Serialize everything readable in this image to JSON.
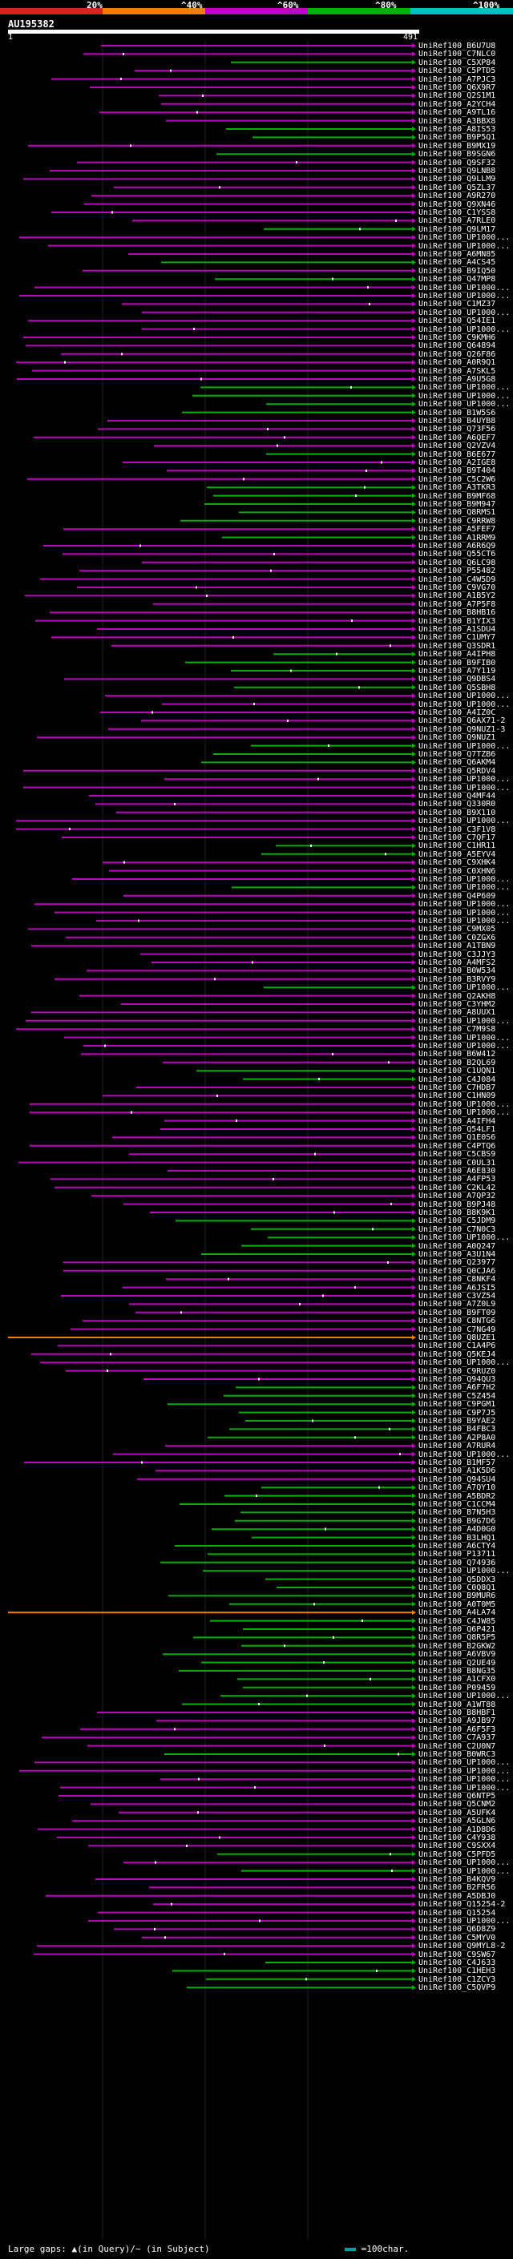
{
  "legend": {
    "labels": [
      "20%",
      "^40%",
      "^60%",
      "^80%",
      "^100%"
    ],
    "colors": [
      "#e02020",
      "#f08000",
      "#c000c0",
      "#00b000",
      "#00c0c0"
    ]
  },
  "query": {
    "name": "AU195382",
    "start": "1",
    "end": "491"
  },
  "footer": {
    "text": "Large gaps: ▲(in Query)/~ (in Subject)",
    "scale": "=100char."
  },
  "hits": [
    "UniRef100_B6U7U8",
    "UniRef100_C7NLC0",
    "UniRef100_C5XP84",
    "UniRef100_C5PTD5",
    "UniRef100_A7PJC3",
    "UniRef100_Q6X9R7",
    "UniRef100_Q2S1M1",
    "UniRef100_A2YCH4",
    "UniRef100_A9TL16",
    "UniRef100_A3BBX8",
    "UniRef100_A8IS53",
    "UniRef100_B9P5Q1",
    "UniRef100_B9MX19",
    "UniRef100_B9SGN6",
    "UniRef100_Q9SF32",
    "UniRef100_Q9LNB8",
    "UniRef100_Q9LLM9",
    "UniRef100_Q5ZL37",
    "UniRef100_A9R270",
    "UniRef100_Q9XN46",
    "UniRef100_C1YSS8",
    "UniRef100_A7RLE0",
    "UniRef100_Q9LM17",
    "UniRef100_UP1000...",
    "UniRef100_UP1000...",
    "UniRef100_A6MN85",
    "UniRef100_A4CS45",
    "UniRef100_B9IQ50",
    "UniRef100_Q47MP8",
    "UniRef100_UP1000...",
    "UniRef100_UP1000...",
    "UniRef100_C1MZ37",
    "UniRef100_UP1000...",
    "UniRef100_Q54IE1",
    "UniRef100_UP1000...",
    "UniRef100_C9KMH6",
    "UniRef100_Q64894",
    "UniRef100_Q26F86",
    "UniRef100_A0R9Q1",
    "UniRef100_A7SKL5",
    "UniRef100_A9U5G8",
    "UniRef100_UP1000...",
    "UniRef100_UP1000...",
    "UniRef100_UP1000...",
    "UniRef100_B1W5S6",
    "UniRef100_B4UYB8",
    "UniRef100_Q73F56",
    "UniRef100_A6QEF7",
    "UniRef100_Q2VZV4",
    "UniRef100_B6E677",
    "UniRef100_A2IGE8",
    "UniRef100_B9T404",
    "UniRef100_C5C2W6",
    "UniRef100_A3TKR3",
    "UniRef100_B9MF68",
    "UniRef100_B9M947",
    "UniRef100_Q8RMS1",
    "UniRef100_C9RRW8",
    "UniRef100_A5FEF7",
    "UniRef100_A1RRM9",
    "UniRef100_A6R6Q9",
    "UniRef100_Q55CT6",
    "UniRef100_Q6LC98",
    "UniRef100_P55482",
    "UniRef100_C4W5D9",
    "UniRef100_C9VG70",
    "UniRef100_A1B5Y2",
    "UniRef100_A7P5F8",
    "UniRef100_B8HB16",
    "UniRef100_B1YIX3",
    "UniRef100_A1SDU4",
    "UniRef100_C1UMY7",
    "UniRef100_Q3SDR1",
    "UniRef100_A4IPH8",
    "UniRef100_B9FIB0",
    "UniRef100_A7Y119",
    "UniRef100_Q9DBS4",
    "UniRef100_Q5SBH8",
    "UniRef100_UP1000...",
    "UniRef100_UP1000...",
    "UniRef100_A4IZ0C",
    "UniRef100_Q6AX71-2",
    "UniRef100_Q9NUZ1-3",
    "UniRef100_Q9NUZ1",
    "UniRef100_UP1000...",
    "UniRef100_Q7TZB6",
    "UniRef100_Q6AKM4",
    "UniRef100_Q5RDV4",
    "UniRef100_UP1000...",
    "UniRef100_UP1000...",
    "UniRef100_Q4MF44",
    "UniRef100_Q330R0",
    "UniRef100_B9X110",
    "UniRef100_UP1000...",
    "UniRef100_C3F1V8",
    "UniRef100_C7QF17",
    "UniRef100_C1HR11",
    "UniRef100_A5EYV4",
    "UniRef100_C9XHK4",
    "UniRef100_C0XHN6",
    "UniRef100_UP1000...",
    "UniRef100_UP1000...",
    "UniRef100_Q4P609",
    "UniRef100_UP1000...",
    "UniRef100_UP1000...",
    "UniRef100_UP1000...",
    "UniRef100_C9MX05",
    "UniRef100_C0ZGX6",
    "UniRef100_A1TBN9",
    "UniRef100_C3JJY3",
    "UniRef100_A4MFS2",
    "UniRef100_B0W534",
    "UniRef100_B3RVY9",
    "UniRef100_UP1000...",
    "UniRef100_Q2AKH8",
    "UniRef100_C3YHM2",
    "UniRef100_A8UUX1",
    "UniRef100_UP1000...",
    "UniRef100_C7M9S8",
    "UniRef100_UP1000...",
    "UniRef100_UP1000...",
    "UniRef100_B6W412",
    "UniRef100_B2QL69",
    "UniRef100_C1UQN1",
    "UniRef100_C4J084",
    "UniRef100_C7HDB7",
    "UniRef100_C1HN09",
    "UniRef100_UP1000...",
    "UniRef100_UP1000...",
    "UniRef100_A4IFH4",
    "UniRef100_Q54LF1",
    "UniRef100_Q1E0S6",
    "UniRef100_C4PTQ6",
    "UniRef100_C5CBS9",
    "UniRef100_C0UL31",
    "UniRef100_A6E830",
    "UniRef100_A4FP53",
    "UniRef100_C2KL42",
    "UniRef100_A7QP32",
    "UniRef100_B9PJ48",
    "UniRef100_B8K9K1",
    "UniRef100_C5JDM9",
    "UniRef100_C7N0C3",
    "UniRef100_UP1000...",
    "UniRef100_A0Q247",
    "UniRef100_A3U1N4",
    "UniRef100_Q23977",
    "UniRef100_Q0CJA6",
    "UniRef100_C8NKF4",
    "UniRef100_A6JSI5",
    "UniRef100_C3VZ54",
    "UniRef100_A7Z0L9",
    "UniRef100_B9FT09",
    "UniRef100_C8NTG6",
    "UniRef100_C7NG49",
    "UniRef100_Q8UZE1",
    "UniRef100_C1A4P6",
    "UniRef100_Q5KEJ4",
    "UniRef100_UP1000...",
    "UniRef100_C9RUZ0",
    "UniRef100_Q94QU3",
    "UniRef100_A6F7H2",
    "UniRef100_C5Z454",
    "UniRef100_C9PGM1",
    "UniRef100_C9P7J5",
    "UniRef100_B9YAE2",
    "UniRef100_B4FBC3",
    "UniRef100_A2P8A0",
    "UniRef100_A7RUR4",
    "UniRef100_UP1000...",
    "UniRef100_B1MF57",
    "UniRef100_A1K5D6",
    "UniRef100_Q94SU4",
    "UniRef100_A7QY10",
    "UniRef100_A5BDR2",
    "UniRef100_C1CCM4",
    "UniRef100_B7N5H3",
    "UniRef100_B9G7D6",
    "UniRef100_A4D0G0",
    "UniRef100_B3LHQ1",
    "UniRef100_A6CTY4",
    "UniRef100_P13711",
    "UniRef100_Q74936",
    "UniRef100_UP1000...",
    "UniRef100_Q5DDX3",
    "UniRef100_C0Q8Q1",
    "UniRef100_B9MUR6",
    "UniRef100_A0T0M5",
    "UniRef100_A4LA74",
    "UniRef100_C4JW85",
    "UniRef100_Q6P421",
    "UniRef100_Q8R5P5",
    "UniRef100_B2GKW2",
    "UniRef100_A6VBV9",
    "UniRef100_Q2UE49",
    "UniRef100_B8NG35",
    "UniRef100_A1CFX0",
    "UniRef100_P09459",
    "UniRef100_UP1000...",
    "UniRef100_A1WT88",
    "UniRef100_B8HBF1",
    "UniRef100_A9JB97",
    "UniRef100_A6F5F3",
    "UniRef100_C7A937",
    "UniRef100_C2U0N7",
    "UniRef100_B0WRC3",
    "UniRef100_UP1000...",
    "UniRef100_UP1000...",
    "UniRef100_UP1000...",
    "UniRef100_UP1000...",
    "UniRef100_Q6NTP5",
    "UniRef100_Q5CNM2",
    "UniRef100_A5UFK4",
    "UniRef100_A5GLN6",
    "UniRef100_A1D8D6",
    "UniRef100_C4Y938",
    "UniRef100_C9SXX4",
    "UniRef100_C5PFD5",
    "UniRef100_UP1000...",
    "UniRef100_UP1000...",
    "UniRef100_B4KQV9",
    "UniRef100_B2FR56",
    "UniRef100_A5DBJ0",
    "UniRef100_Q15254-2",
    "UniRef100_Q15254",
    "UniRef100_UP1000...",
    "UniRef100_Q6D8Z9",
    "UniRef100_C5MYV0",
    "UniRef100_Q9MYL8-2",
    "UniRef100_C9SW67",
    "UniRef100_C4J633",
    "UniRef100_C1HEH3",
    "UniRef100_C1ZCY3",
    "UniRef100_C5QVP9"
  ]
}
